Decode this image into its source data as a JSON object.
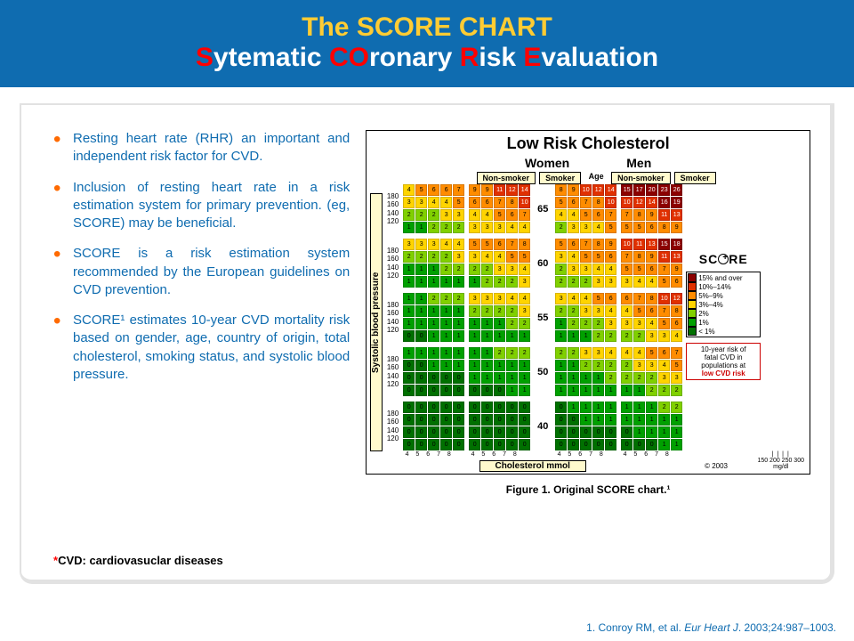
{
  "header": {
    "line1": "The SCORE CHART",
    "line2_parts": [
      "S",
      "ytematic ",
      "CO",
      "ronary ",
      "R",
      "isk ",
      "E",
      "valuation"
    ]
  },
  "bullets": [
    "Resting heart rate (RHR) an important and independent risk factor for CVD.",
    "Inclusion of resting heart rate in a risk estimation system for primary prevention. (eg, SCORE) may be beneficial.",
    "SCORE is a risk estimation system recommended by the European guidelines on CVD prevention.",
    "SCORE¹ estimates 10-year CVD mortality risk based on gender, age, country of origin, total cholesterol, smoking status, and systolic blood pressure."
  ],
  "footnote": {
    "star": "*",
    "text": "CVD: cardiovasuclar diseases"
  },
  "chart": {
    "title": "Low Risk Cholesterol",
    "genders": [
      "Women",
      "Men"
    ],
    "smoking": [
      "Non-smoker",
      "Smoker",
      "Non-smoker",
      "Smoker"
    ],
    "age_label": "Age",
    "ages": [
      "65",
      "60",
      "55",
      "50",
      "40"
    ],
    "bp_rows": [
      "180",
      "160",
      "140",
      "120"
    ],
    "y_axis": "Systolic blood pressure",
    "x_axis": "Cholesterol mmol",
    "x_ticks": "4  5  6  7  8",
    "mgdl_top": "150 200 250 300",
    "mgdl_bot": "mg/dl",
    "score_logo": "SC   RE",
    "copyright": "© 2003",
    "risk_text": {
      "l1": "10-year risk of",
      "l2": "fatal CVD in",
      "l3": "populations at",
      "l4": "low CVD risk"
    },
    "legend": [
      {
        "c": "#8b0000",
        "t": "15% and over"
      },
      {
        "c": "#e03000",
        "t": "10%–14%"
      },
      {
        "c": "#ff8c00",
        "t": "5%–9%"
      },
      {
        "c": "#ffd400",
        "t": "3%–4%"
      },
      {
        "c": "#80d000",
        "t": "2%"
      },
      {
        "c": "#00a000",
        "t": "1%"
      },
      {
        "c": "#007000",
        "t": "< 1%"
      }
    ],
    "color_map": {
      "0": "#007000",
      "1": "#00a000",
      "2": "#80d000",
      "3": "#ffd400",
      "4": "#ffd400",
      "5": "#ff8c00",
      "6": "#ff8c00",
      "7": "#ff8c00",
      "8": "#ff8c00",
      "9": "#ff8c00",
      "10": "#e03000",
      "11": "#e03000",
      "12": "#e03000",
      "13": "#e03000",
      "14": "#e03000",
      "15": "#8b0000",
      "16": "#8b0000",
      "17": "#8b0000",
      "18": "#8b0000",
      "19": "#8b0000",
      "20": "#8b0000",
      "23": "#8b0000",
      "26": "#8b0000"
    },
    "blocks": {
      "65": [
        [
          [
            4,
            5,
            6,
            6,
            7
          ],
          [
            3,
            3,
            4,
            4,
            5
          ],
          [
            2,
            2,
            2,
            3,
            3
          ],
          [
            1,
            1,
            2,
            2,
            2
          ]
        ],
        [
          [
            9,
            9,
            11,
            12,
            14
          ],
          [
            6,
            6,
            7,
            8,
            10
          ],
          [
            4,
            4,
            5,
            6,
            7
          ],
          [
            3,
            3,
            3,
            4,
            4
          ]
        ],
        [
          [
            8,
            9,
            10,
            12,
            14
          ],
          [
            5,
            6,
            7,
            8,
            10
          ],
          [
            4,
            4,
            5,
            6,
            7
          ],
          [
            2,
            3,
            3,
            4,
            5
          ]
        ],
        [
          [
            15,
            17,
            20,
            23,
            26
          ],
          [
            10,
            12,
            14,
            16,
            19
          ],
          [
            7,
            8,
            9,
            11,
            13
          ],
          [
            5,
            5,
            6,
            8,
            9
          ]
        ]
      ],
      "60": [
        [
          [
            3,
            3,
            3,
            4,
            4
          ],
          [
            2,
            2,
            2,
            2,
            3
          ],
          [
            1,
            1,
            1,
            2,
            2
          ],
          [
            1,
            1,
            1,
            1,
            1
          ]
        ],
        [
          [
            5,
            5,
            6,
            7,
            8
          ],
          [
            3,
            4,
            4,
            5,
            5
          ],
          [
            2,
            2,
            3,
            3,
            4
          ],
          [
            1,
            2,
            2,
            2,
            3
          ]
        ],
        [
          [
            5,
            6,
            7,
            8,
            9
          ],
          [
            3,
            4,
            5,
            5,
            6
          ],
          [
            2,
            3,
            3,
            4,
            4
          ],
          [
            2,
            2,
            2,
            3,
            3
          ]
        ],
        [
          [
            10,
            11,
            13,
            15,
            18
          ],
          [
            7,
            8,
            9,
            11,
            13
          ],
          [
            5,
            5,
            6,
            7,
            9
          ],
          [
            3,
            4,
            4,
            5,
            6
          ]
        ]
      ],
      "55": [
        [
          [
            1,
            1,
            2,
            2,
            2
          ],
          [
            1,
            1,
            1,
            1,
            1
          ],
          [
            1,
            1,
            1,
            1,
            1
          ],
          [
            0,
            0,
            1,
            1,
            1
          ]
        ],
        [
          [
            3,
            3,
            3,
            4,
            4
          ],
          [
            2,
            2,
            2,
            2,
            3
          ],
          [
            1,
            1,
            1,
            2,
            2
          ],
          [
            1,
            1,
            1,
            1,
            1
          ]
        ],
        [
          [
            3,
            4,
            4,
            5,
            6
          ],
          [
            2,
            2,
            3,
            3,
            4
          ],
          [
            1,
            2,
            2,
            2,
            3
          ],
          [
            1,
            1,
            1,
            2,
            2
          ]
        ],
        [
          [
            6,
            7,
            8,
            10,
            12
          ],
          [
            4,
            5,
            6,
            7,
            8
          ],
          [
            3,
            3,
            4,
            5,
            6
          ],
          [
            2,
            2,
            3,
            3,
            4
          ]
        ]
      ],
      "50": [
        [
          [
            1,
            1,
            1,
            1,
            1
          ],
          [
            0,
            0,
            1,
            1,
            1
          ],
          [
            0,
            0,
            0,
            0,
            0
          ],
          [
            0,
            0,
            0,
            0,
            0
          ]
        ],
        [
          [
            1,
            1,
            2,
            2,
            2
          ],
          [
            1,
            1,
            1,
            1,
            1
          ],
          [
            1,
            1,
            1,
            1,
            1
          ],
          [
            0,
            0,
            0,
            1,
            1
          ]
        ],
        [
          [
            2,
            2,
            3,
            3,
            4
          ],
          [
            1,
            1,
            2,
            2,
            2
          ],
          [
            1,
            1,
            1,
            1,
            2
          ],
          [
            1,
            1,
            1,
            1,
            1
          ]
        ],
        [
          [
            4,
            4,
            5,
            6,
            7
          ],
          [
            2,
            3,
            3,
            4,
            5
          ],
          [
            2,
            2,
            2,
            3,
            3
          ],
          [
            1,
            1,
            2,
            2,
            2
          ]
        ]
      ],
      "40": [
        [
          [
            0,
            0,
            0,
            0,
            0
          ],
          [
            0,
            0,
            0,
            0,
            0
          ],
          [
            0,
            0,
            0,
            0,
            0
          ],
          [
            0,
            0,
            0,
            0,
            0
          ]
        ],
        [
          [
            0,
            0,
            0,
            0,
            0
          ],
          [
            0,
            0,
            0,
            0,
            0
          ],
          [
            0,
            0,
            0,
            0,
            0
          ],
          [
            0,
            0,
            0,
            0,
            0
          ]
        ],
        [
          [
            0,
            1,
            1,
            1,
            1
          ],
          [
            0,
            0,
            1,
            1,
            1
          ],
          [
            0,
            0,
            0,
            0,
            0
          ],
          [
            0,
            0,
            0,
            0,
            0
          ]
        ],
        [
          [
            1,
            1,
            1,
            2,
            2
          ],
          [
            1,
            1,
            1,
            1,
            1
          ],
          [
            0,
            1,
            1,
            1,
            1
          ],
          [
            0,
            0,
            0,
            1,
            1
          ]
        ]
      ]
    }
  },
  "caption": "Figure 1. Original SCORE chart.¹",
  "reference": {
    "pre": "1. Conroy RM, et al. ",
    "ital": "Eur Heart J",
    "post": ". 2003;24:987–1003."
  }
}
